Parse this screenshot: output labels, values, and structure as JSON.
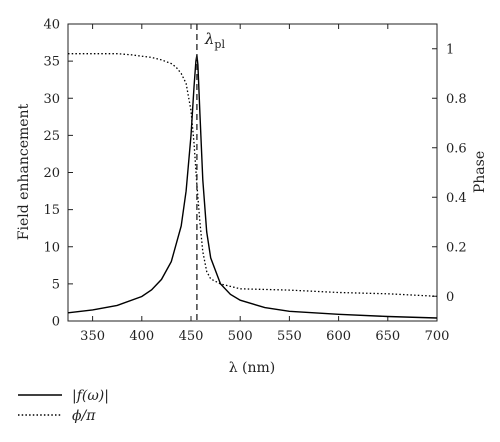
{
  "chart_data": {
    "type": "line",
    "xlabel": "λ (nm)",
    "ylabel_left": "Field enhancement",
    "ylabel_right": "Phase",
    "xlim": [
      325,
      700
    ],
    "ylim_left": [
      0,
      40
    ],
    "ylim_right": [
      -0.1,
      1.1
    ],
    "x_ticks": [
      350,
      400,
      450,
      500,
      550,
      600,
      650,
      700
    ],
    "y_ticks_left": [
      0,
      5,
      10,
      15,
      20,
      25,
      30,
      35,
      40
    ],
    "y_ticks_right": [
      0,
      0.2,
      0.4,
      0.6,
      0.8,
      1
    ],
    "y_tick_labels_right": [
      "0",
      "0.2",
      "0.4",
      "0.6",
      "0.8",
      "1"
    ],
    "grid": false,
    "legend_position": "bottom-left",
    "annotation": {
      "text": "λ",
      "subscript": "pl",
      "x": 456
    },
    "series": [
      {
        "name": "|f(ω)|",
        "axis": "left",
        "style": "solid",
        "color": "#000000",
        "x": [
          325,
          350,
          375,
          400,
          410,
          420,
          430,
          440,
          445,
          450,
          453,
          455,
          456,
          457,
          459,
          462,
          466,
          470,
          480,
          490,
          500,
          525,
          550,
          600,
          650,
          700
        ],
        "y": [
          1.1,
          1.5,
          2.1,
          3.3,
          4.2,
          5.6,
          8.0,
          12.8,
          17.5,
          25.0,
          31.5,
          35.0,
          35.8,
          34.5,
          28.0,
          19.0,
          12.0,
          8.5,
          5.0,
          3.6,
          2.8,
          1.8,
          1.3,
          0.9,
          0.6,
          0.4
        ]
      },
      {
        "name": "ϕ/π",
        "axis": "right",
        "style": "dotted",
        "color": "#000000",
        "x": [
          325,
          350,
          375,
          390,
          400,
          410,
          420,
          430,
          435,
          440,
          445,
          450,
          453,
          456,
          459,
          462,
          466,
          470,
          480,
          490,
          500,
          550,
          600,
          650,
          700
        ],
        "y": [
          0.98,
          0.98,
          0.98,
          0.975,
          0.97,
          0.965,
          0.955,
          0.94,
          0.925,
          0.9,
          0.86,
          0.75,
          0.62,
          0.45,
          0.3,
          0.18,
          0.1,
          0.07,
          0.05,
          0.04,
          0.03,
          0.025,
          0.015,
          0.01,
          0.0
        ]
      }
    ]
  }
}
